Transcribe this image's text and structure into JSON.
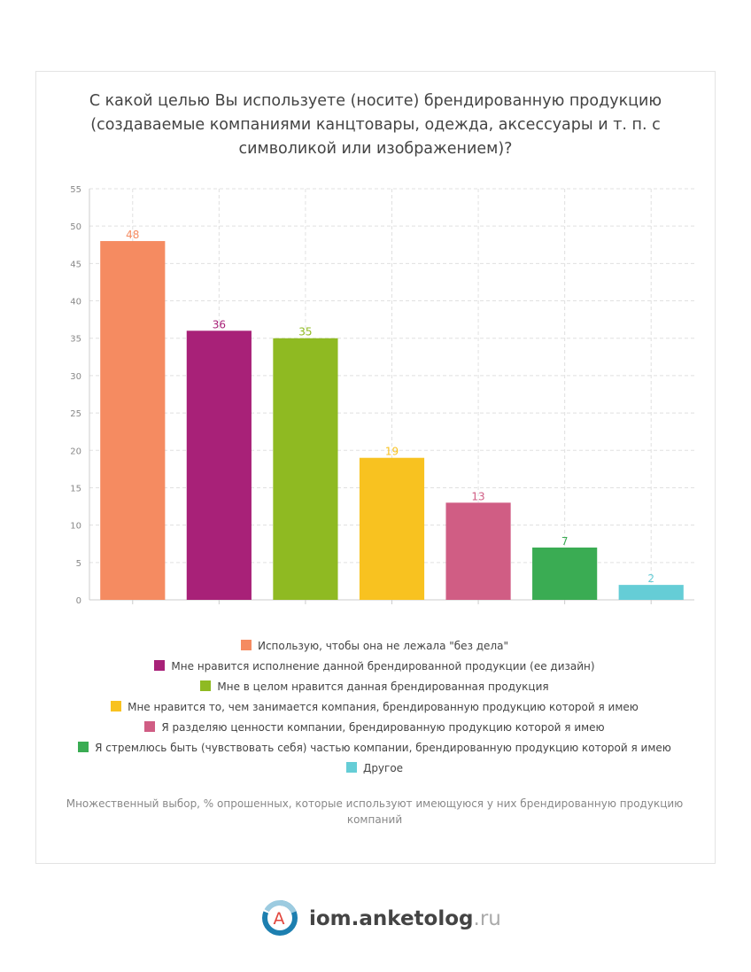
{
  "chart_data": {
    "type": "bar",
    "title": "С какой целью Вы используете (носите) брендированную продукцию (создаваемые компаниями канцтовары, одежда, аксессуары и т. п. с символикой или изображением)?",
    "categories": [
      "Использую, чтобы она не лежала \"без дела\"",
      "Мне нравится исполнение данной брендированной продукции (ее дизайн)",
      "Мне в целом нравится данная брендированная продукция",
      "Мне нравится то, чем занимается компания, брендированную продукцию которой я имею",
      "Я разделяю ценности компании, брендированную продукцию которой я имею",
      "Я стремлюсь быть (чувствовать себя) частью компании, брендированную продукцию которой я имею",
      "Другое"
    ],
    "values": [
      48,
      36,
      35,
      19,
      13,
      7,
      2
    ],
    "colors": [
      "#f58b61",
      "#a82178",
      "#8fba22",
      "#f8c220",
      "#d05d84",
      "#3aac53",
      "#65cdd6"
    ],
    "ylim": [
      0,
      55
    ],
    "yticks": [
      0,
      5,
      10,
      15,
      20,
      25,
      30,
      35,
      40,
      45,
      50,
      55
    ],
    "grid": true,
    "note": "Множественный выбор, % опрошенных, которые используют имеющуюся у них брендированную продукцию компаний"
  },
  "logo": {
    "icon_letter": "A",
    "text": "iom.anketolog",
    "suffix": ".ru"
  }
}
